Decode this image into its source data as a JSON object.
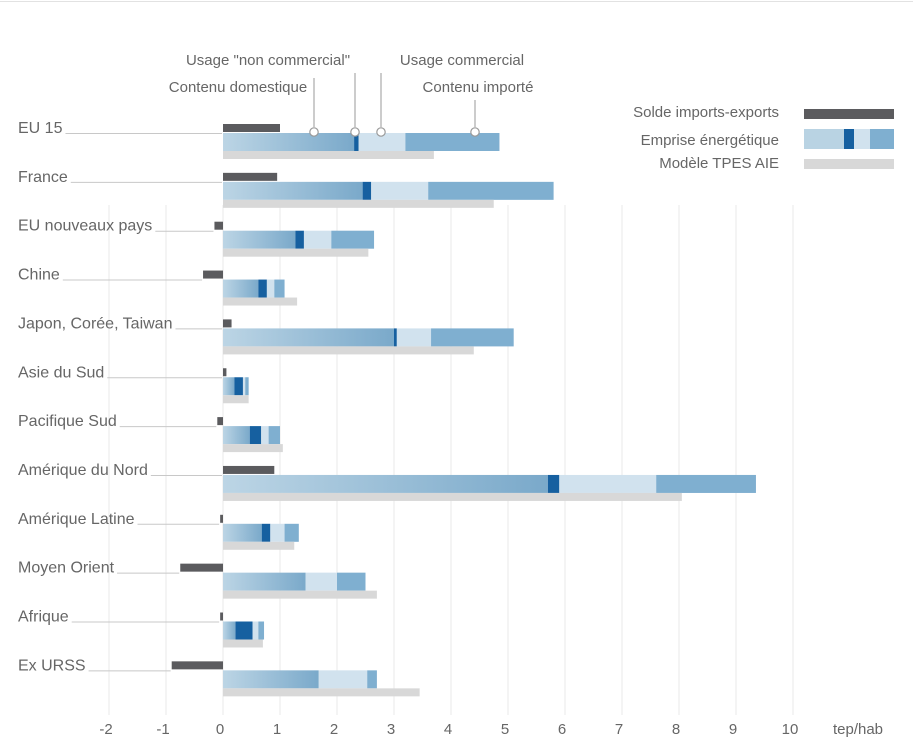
{
  "chart_data": {
    "type": "bar",
    "orientation": "horizontal",
    "unit_label": "tep/hab",
    "xlim": [
      -2,
      10
    ],
    "x_ticks": [
      "-2",
      "-1",
      "0",
      "1",
      "2",
      "3",
      "4",
      "5",
      "6",
      "7",
      "8",
      "9",
      "10"
    ],
    "grid": "vertical lines",
    "categories": [
      "EU 15",
      "France",
      "EU nouveaux pays",
      "Chine",
      "Japon, Corée, Taiwan",
      "Asie du Sud",
      "Pacifique Sud",
      "Amérique du Nord",
      "Amérique Latine",
      "Moyen Orient",
      "Afrique",
      "Ex URSS"
    ],
    "series": [
      {
        "name": "Solde imports-exports",
        "values": [
          1.0,
          0.95,
          -0.15,
          -0.35,
          0.15,
          0.06,
          -0.1,
          0.9,
          -0.05,
          -0.75,
          -0.05,
          -0.9
        ]
      },
      {
        "name": "Contenu domestique",
        "values": [
          2.3,
          2.45,
          1.27,
          0.62,
          3.0,
          0.2,
          0.47,
          5.7,
          0.68,
          1.45,
          0.22,
          1.68
        ]
      },
      {
        "name": "Usage \"non commercial\"",
        "values": [
          0.08,
          0.15,
          0.15,
          0.15,
          0.05,
          0.15,
          0.2,
          0.2,
          0.15,
          0.0,
          0.3,
          0.0
        ]
      },
      {
        "name": "Usage commercial",
        "values": [
          0.82,
          1.0,
          0.48,
          0.13,
          0.6,
          0.04,
          0.13,
          1.7,
          0.25,
          0.55,
          0.1,
          0.85
        ]
      },
      {
        "name": "Contenu importé",
        "values": [
          1.65,
          2.2,
          0.75,
          0.18,
          1.45,
          0.06,
          0.2,
          1.75,
          0.25,
          0.5,
          0.1,
          0.17
        ]
      },
      {
        "name": "Modèle TPES AIE",
        "values": [
          3.7,
          4.75,
          2.55,
          1.3,
          4.4,
          0.45,
          1.05,
          8.05,
          1.25,
          2.7,
          0.7,
          3.45
        ]
      }
    ],
    "annotations": [
      "Usage \"non commercial\"",
      "Usage commercial",
      "Contenu domestique",
      "Contenu importé"
    ],
    "legend": [
      {
        "label": "Solde imports-exports"
      },
      {
        "label": "Emprise énergétique"
      },
      {
        "label": "Modèle TPES AIE"
      }
    ],
    "legend_placement": "top-right",
    "colors": {
      "solde": "#5b5b5e",
      "domestic_light": "#b9d3e3",
      "domestic_dark": "#7eaccb",
      "non_commercial": "#1660a0",
      "commercial": "#d1e2ee",
      "imported": "#7fafd0",
      "tpes": "#d8d8d8",
      "grid": "#e9e9e9",
      "text": "#666666",
      "leader": "#c8c8c8"
    }
  }
}
